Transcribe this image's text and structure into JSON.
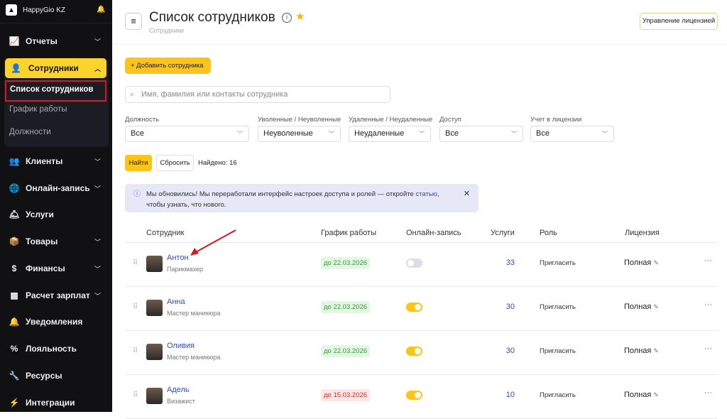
{
  "sidebar": {
    "brand": "HappyGio KZ",
    "items": [
      {
        "label": "Отчеты",
        "icon": "chart-icon",
        "chev": true
      },
      {
        "label": "Клиенты",
        "icon": "users-icon",
        "chev": true
      },
      {
        "label": "Онлайн-запись",
        "icon": "globe-icon",
        "chev": true
      },
      {
        "label": "Услуги",
        "icon": "service-bell-icon",
        "chev": false
      },
      {
        "label": "Товары",
        "icon": "box-icon",
        "chev": true
      },
      {
        "label": "Финансы",
        "icon": "dollar-icon",
        "chev": true
      },
      {
        "label": "Расчет зарплат",
        "icon": "calculator-icon",
        "chev": true
      },
      {
        "label": "Уведомления",
        "icon": "bell-icon",
        "chev": false
      },
      {
        "label": "Лояльность",
        "icon": "percent-icon",
        "chev": false
      },
      {
        "label": "Ресурсы",
        "icon": "wrench-icon",
        "chev": false
      },
      {
        "label": "Интеграции",
        "icon": "plug-icon",
        "chev": false
      }
    ],
    "active": "Сотрудники",
    "sub": [
      "Список сотрудников",
      "График работы",
      "Должности"
    ]
  },
  "header": {
    "title": "Список сотрудников",
    "breadcrumb": "Сотрудники",
    "license_button": "Управление лицензией"
  },
  "toolbar": {
    "add": "+ Добавить сотрудника",
    "search_placeholder": "Имя, фамилия или контакты сотрудника"
  },
  "filters": [
    {
      "label": "Должность",
      "value": "Все"
    },
    {
      "label": "Уволенные / Неуволенные",
      "value": "Неуволенные"
    },
    {
      "label": "Удаленные / Неудаленные",
      "value": "Неудаленные"
    },
    {
      "label": "Доступ",
      "value": "Все"
    },
    {
      "label": "Учет в лицензии",
      "value": "Все"
    }
  ],
  "actions": {
    "find": "Найти",
    "reset": "Сбросить",
    "found": "Найдено: 16"
  },
  "notice": {
    "before": "Мы обновились! Мы переработали интерфейс настроек доступа и ролей — откройте ",
    "link": "статью",
    "after": ", чтобы узнать, что нового."
  },
  "table": {
    "columns": [
      "Сотрудник",
      "График работы",
      "Онлайн-запись",
      "Услуги",
      "Роль",
      "Лицензия"
    ],
    "rows": [
      {
        "name": "Антон",
        "position": "Парикмахер",
        "schedule": "до 22.03.2026",
        "schedule_status": "ok",
        "online": false,
        "services": "33",
        "role": "Пригласить",
        "license": "Полная"
      },
      {
        "name": "Анна",
        "position": "Мастер маникюра",
        "schedule": "до 22.03.2026",
        "schedule_status": "ok",
        "online": true,
        "services": "30",
        "role": "Пригласить",
        "license": "Полная"
      },
      {
        "name": "Оливия",
        "position": "Мастер маникюра",
        "schedule": "до 22.03.2026",
        "schedule_status": "ok",
        "online": true,
        "services": "30",
        "role": "Пригласить",
        "license": "Полная"
      },
      {
        "name": "Адель",
        "position": "Визажист",
        "schedule": "до 15.03.2026",
        "schedule_status": "warn",
        "online": true,
        "services": "10",
        "role": "Пригласить",
        "license": "Полная"
      }
    ]
  },
  "colors": {
    "accent": "#fcc419",
    "link": "#2f4ad6",
    "highlight": "#e0141e"
  }
}
